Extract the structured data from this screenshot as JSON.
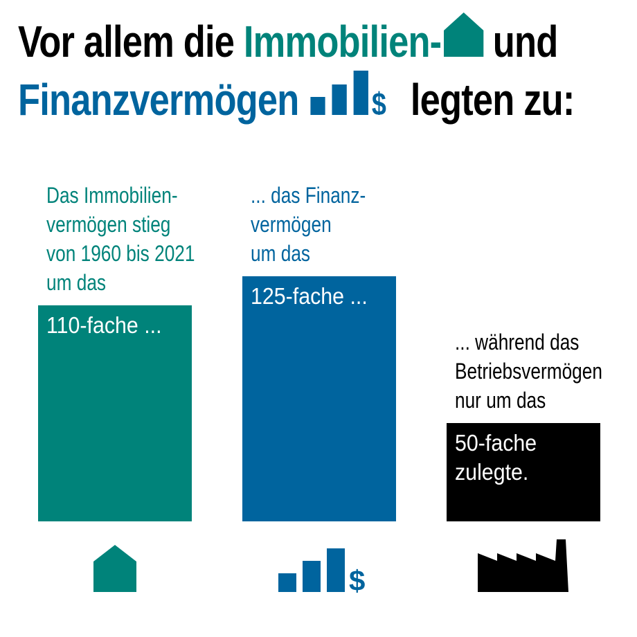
{
  "title": {
    "line1_prefix": "Vor allem die ",
    "line1_highlight": "Immobilien-",
    "line1_suffix": " und",
    "line2_highlight": "Finanzvermögen",
    "line2_suffix": " legten zu:"
  },
  "colors": {
    "immobilien": "#00837a",
    "finanz": "#00649e",
    "betrieb": "#000000"
  },
  "chart_data": {
    "type": "bar",
    "categories": [
      "Immobilienvermögen",
      "Finanzvermögen",
      "Betriebsvermögen"
    ],
    "values": [
      110,
      125,
      50
    ],
    "ylim": [
      0,
      130
    ],
    "grid": false,
    "icons": [
      "house-icon",
      "bar-chart-dollar-icon",
      "factory-icon"
    ],
    "descriptions": [
      [
        "Das Immobilien-",
        "vermögen stieg",
        "von 1960 bis 2021",
        "um das"
      ],
      [
        "... das Finanz-",
        "vermögen",
        "um das"
      ],
      [
        "... während das",
        "Betriebsvermögen",
        "nur um das"
      ]
    ],
    "bar_labels": [
      [
        "110-fache ..."
      ],
      [
        "125-fache ..."
      ],
      [
        "50-fache",
        "zulegte."
      ]
    ]
  }
}
